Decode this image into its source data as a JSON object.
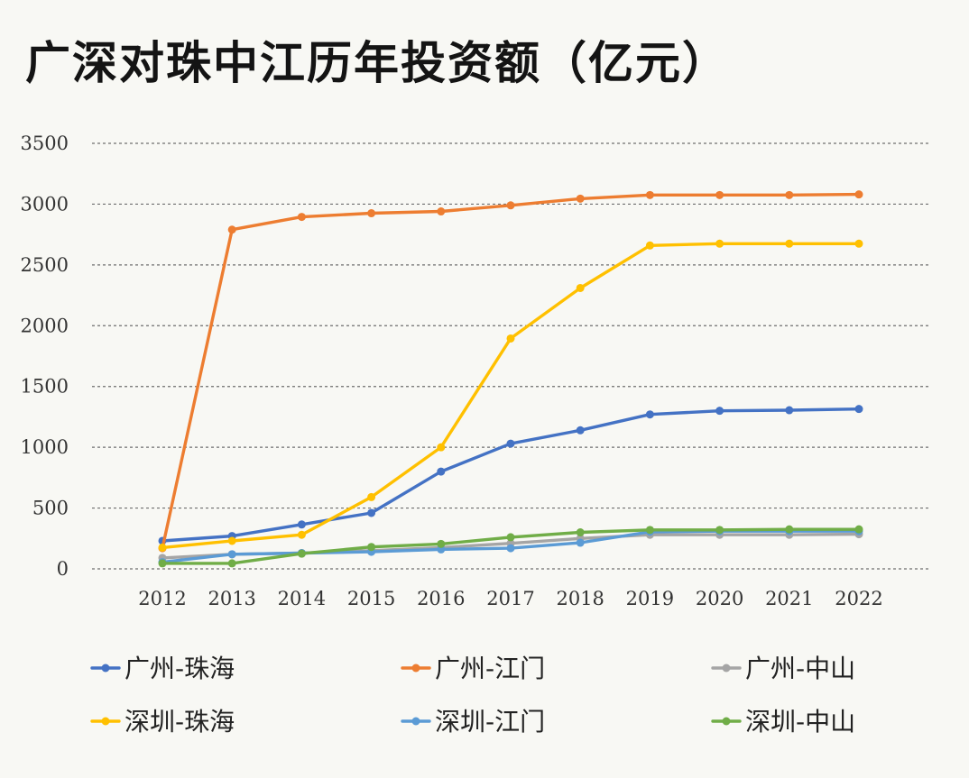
{
  "title": "广深对珠中江历年投资额（亿元）",
  "chart_data": {
    "type": "line",
    "title": "广深对珠中江历年投资额（亿元）",
    "xlabel": "",
    "ylabel": "",
    "categories": [
      "2012",
      "2013",
      "2014",
      "2015",
      "2016",
      "2017",
      "2018",
      "2019",
      "2020",
      "2021",
      "2022"
    ],
    "ylim": [
      0,
      3500
    ],
    "yticks": [
      0,
      500,
      1000,
      1500,
      2000,
      2500,
      3000,
      3500
    ],
    "grid": "horizontal-dashed",
    "legend_position": "bottom",
    "series": [
      {
        "name": "广州-珠海",
        "color": "#4472c4",
        "values": [
          230,
          270,
          365,
          460,
          800,
          1030,
          1140,
          1270,
          1300,
          1305,
          1315
        ]
      },
      {
        "name": "广州-江门",
        "color": "#ed7d31",
        "values": [
          170,
          2790,
          2895,
          2925,
          2940,
          2990,
          3045,
          3075,
          3075,
          3075,
          3080
        ]
      },
      {
        "name": "广州-中山",
        "color": "#a5a5a5",
        "values": [
          90,
          120,
          130,
          150,
          175,
          210,
          250,
          280,
          280,
          280,
          285
        ]
      },
      {
        "name": "深圳-珠海",
        "color": "#ffc000",
        "values": [
          175,
          230,
          280,
          590,
          1000,
          1895,
          2310,
          2660,
          2675,
          2675,
          2675
        ]
      },
      {
        "name": "深圳-江门",
        "color": "#5b9bd5",
        "values": [
          55,
          120,
          130,
          140,
          160,
          170,
          215,
          305,
          310,
          310,
          310
        ]
      },
      {
        "name": "深圳-中山",
        "color": "#70ad47",
        "values": [
          45,
          45,
          125,
          180,
          205,
          260,
          300,
          320,
          320,
          325,
          325
        ]
      }
    ]
  }
}
